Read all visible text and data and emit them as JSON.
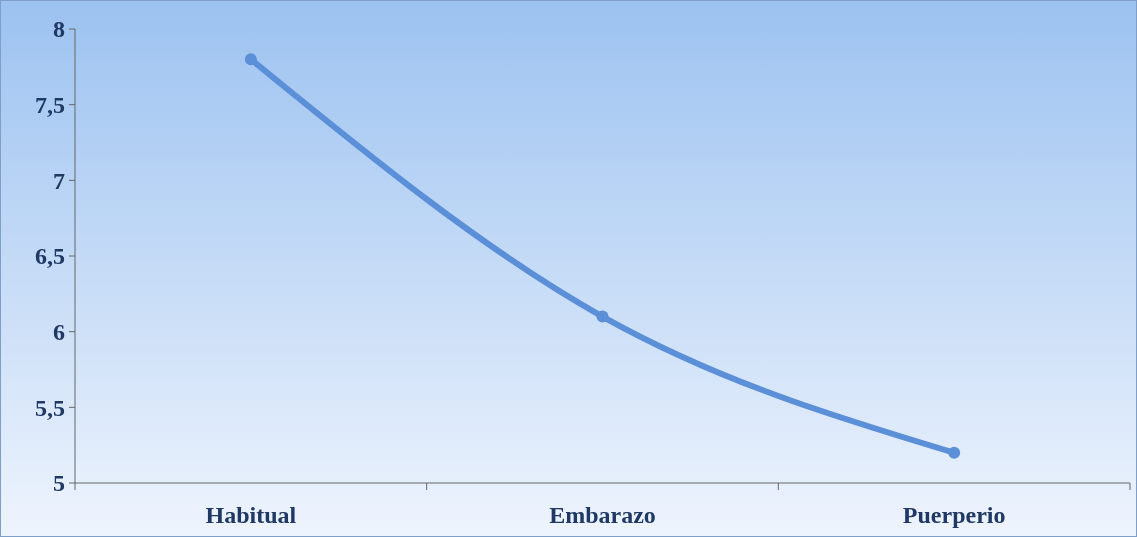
{
  "chart_data": {
    "type": "line",
    "categories": [
      "Habitual",
      "Embarazo",
      "Puerperio"
    ],
    "series": [
      {
        "color": "#5b8fd8",
        "values": [
          7.8,
          6.1,
          5.2
        ]
      }
    ],
    "ylim": [
      5,
      8
    ],
    "yticks": [
      5,
      {
        "value": 5.5,
        "label": "5,5"
      },
      6,
      {
        "value": 6.5,
        "label": "6,5"
      },
      7,
      {
        "value": 7.5,
        "label": "7,5"
      },
      8
    ],
    "grid": false,
    "marker": "circle",
    "line_style": "solid"
  }
}
